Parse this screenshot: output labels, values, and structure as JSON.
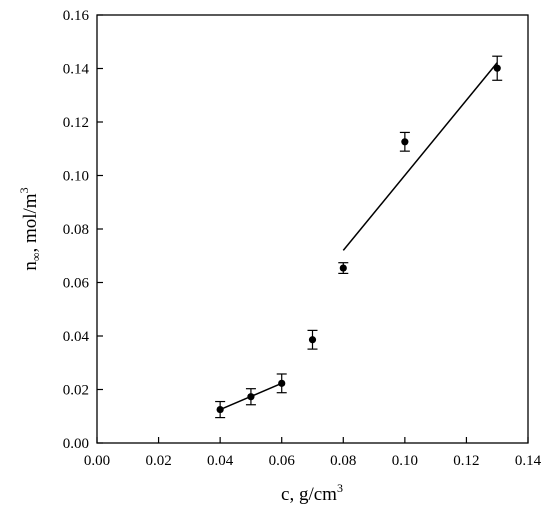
{
  "chart_data": {
    "type": "scatter",
    "xlabel": {
      "main": "c, g/cm",
      "sup": "3"
    },
    "ylabel": {
      "main": "n",
      "sub": "∞",
      "rest": ", mol/m",
      "sup": "3"
    },
    "xlim": [
      0.0,
      0.14
    ],
    "ylim": [
      0.0,
      0.16
    ],
    "xticks": [
      "0.00",
      "0.02",
      "0.04",
      "0.06",
      "0.08",
      "0.10",
      "0.12",
      "0.14"
    ],
    "yticks": [
      "0.00",
      "0.02",
      "0.04",
      "0.06",
      "0.08",
      "0.10",
      "0.12",
      "0.14",
      "0.16"
    ],
    "grid": false,
    "points": [
      {
        "x": 0.04,
        "y": 0.0125,
        "err": 0.003
      },
      {
        "x": 0.05,
        "y": 0.0173,
        "err": 0.003
      },
      {
        "x": 0.06,
        "y": 0.0223,
        "err": 0.0035
      },
      {
        "x": 0.07,
        "y": 0.0386,
        "err": 0.0035
      },
      {
        "x": 0.08,
        "y": 0.0654,
        "err": 0.002
      },
      {
        "x": 0.1,
        "y": 0.1126,
        "err": 0.0035
      },
      {
        "x": 0.13,
        "y": 0.1401,
        "err": 0.0045
      }
    ],
    "fit_lines": [
      {
        "x": [
          0.04,
          0.06
        ],
        "y": [
          0.0125,
          0.0223
        ]
      },
      {
        "x": [
          0.08,
          0.13
        ],
        "y": [
          0.072,
          0.1422
        ]
      }
    ]
  }
}
